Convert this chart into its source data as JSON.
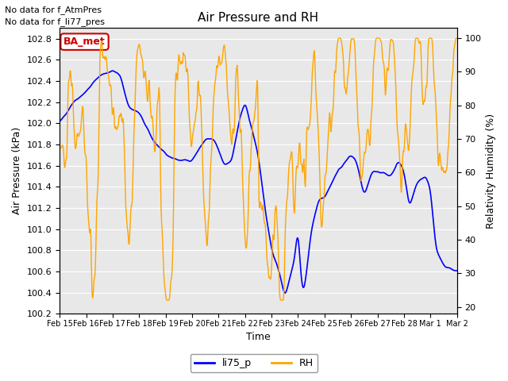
{
  "title": "Air Pressure and RH",
  "annotation_lines": [
    "No data for f_AtmPres",
    "No data for f_li77_pres"
  ],
  "box_label": "BA_met",
  "xlabel": "Time",
  "ylabel_left": "Air Pressure (kPa)",
  "ylabel_right": "Relativity Humidity (%)",
  "ylim_left": [
    100.2,
    102.9
  ],
  "ylim_right": [
    18,
    103
  ],
  "yticks_left": [
    100.2,
    100.4,
    100.6,
    100.8,
    101.0,
    101.2,
    101.4,
    101.6,
    101.8,
    102.0,
    102.2,
    102.4,
    102.6,
    102.8
  ],
  "yticks_right": [
    20,
    30,
    40,
    50,
    60,
    70,
    80,
    90,
    100
  ],
  "color_pressure": "#0000ff",
  "color_rh": "#ffa500",
  "bg_color": "#e8e8e8",
  "grid_color": "#ffffff",
  "legend_labels": [
    "li75_p",
    "RH"
  ],
  "x_tick_labels": [
    "Feb 15",
    "Feb 16",
    "Feb 17",
    "Feb 18",
    "Feb 19",
    "Feb 20",
    "Feb 21",
    "Feb 22",
    "Feb 23",
    "Feb 24",
    "Feb 25",
    "Feb 26",
    "Feb 27",
    "Feb 28",
    "Mar 1",
    "Mar 2"
  ],
  "num_points": 800
}
